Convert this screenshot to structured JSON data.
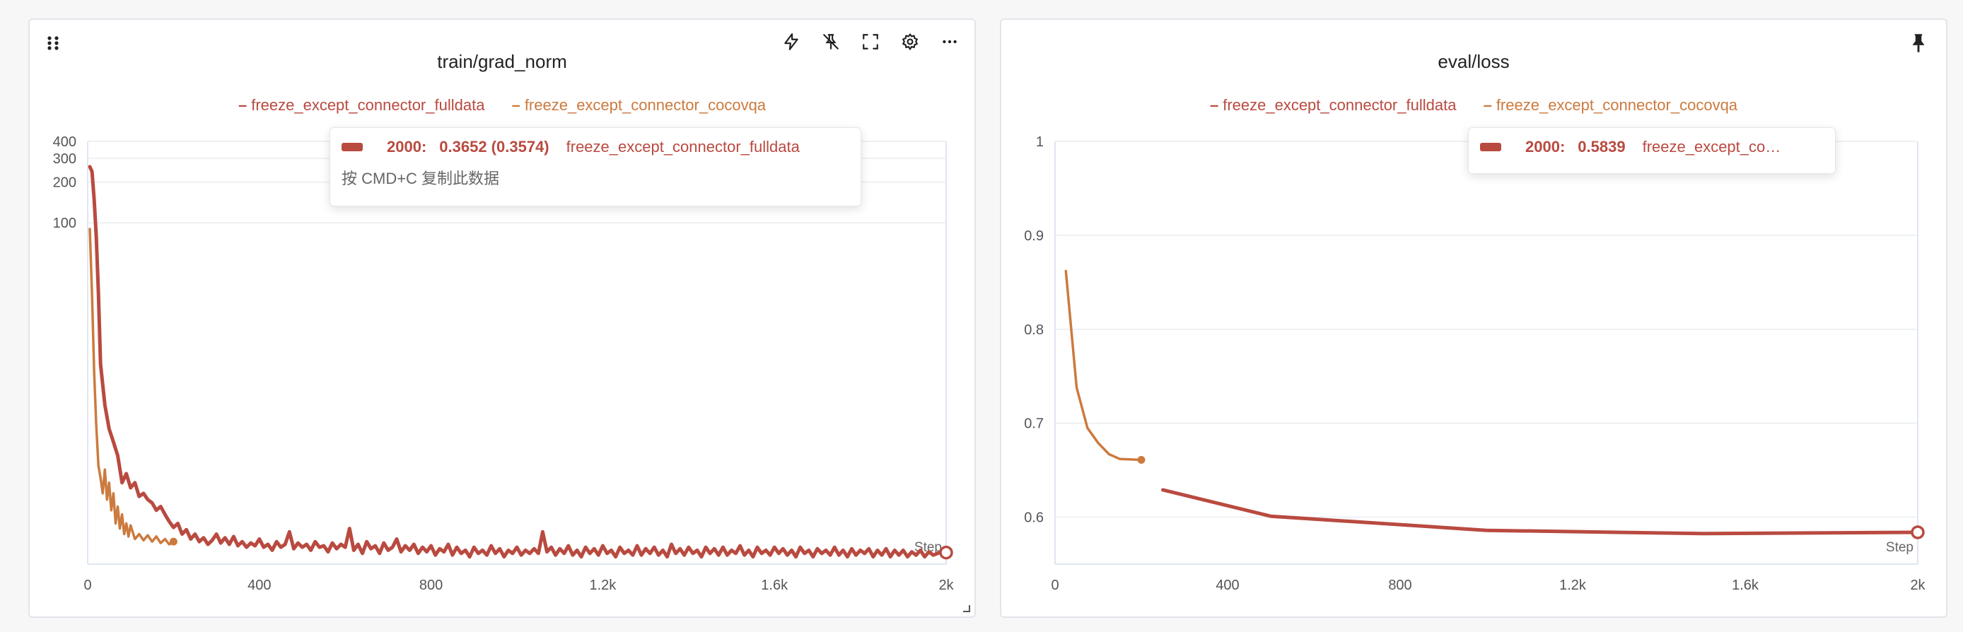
{
  "panels": [
    {
      "title": "train/grad_norm",
      "legend": [
        {
          "name": "freeze_except_connector_fulldata",
          "color": "#b94a40"
        },
        {
          "name": "freeze_except_connector_cocovqa",
          "color": "#cc7a3e"
        }
      ],
      "tooltip": {
        "step": "2000:",
        "value": "0.3652 (0.3574)",
        "series": "freeze_except_connector_fulldata",
        "hint": "按 CMD+C 复制此数据"
      },
      "toolbar": [
        "lightning-icon",
        "pin-off-icon",
        "fullscreen-icon",
        "gear-icon",
        "more-icon"
      ]
    },
    {
      "title": "eval/loss",
      "legend": [
        {
          "name": "freeze_except_connector_fulldata",
          "color": "#b94a40"
        },
        {
          "name": "freeze_except_connector_cocovqa",
          "color": "#cc7a3e"
        }
      ],
      "tooltip": {
        "step": "2000:",
        "value": "0.5839",
        "series": "freeze_except_co…"
      },
      "toolbar": [
        "pin-icon"
      ]
    }
  ],
  "chart_data": [
    {
      "type": "line",
      "title": "train/grad_norm",
      "xlabel": "Step",
      "ylabel": "",
      "yscale": "log",
      "xlim": [
        0,
        2000
      ],
      "ylim": [
        0.3,
        400
      ],
      "xticks": [
        "0",
        "400",
        "800",
        "1.2k",
        "1.6k",
        "2k"
      ],
      "xtick_values": [
        0,
        400,
        800,
        1200,
        1600,
        2000
      ],
      "yticks": [
        "100",
        "200",
        "300",
        "400"
      ],
      "ytick_values": [
        100,
        200,
        300,
        400
      ],
      "grid": true,
      "legend_position": "top",
      "series": [
        {
          "name": "freeze_except_connector_fulldata",
          "color": "#b94a40",
          "points": [
            [
              5,
              260
            ],
            [
              10,
              240
            ],
            [
              15,
              150
            ],
            [
              20,
              80
            ],
            [
              25,
              30
            ],
            [
              30,
              9
            ],
            [
              40,
              4.5
            ],
            [
              50,
              3.0
            ],
            [
              60,
              2.4
            ],
            [
              70,
              1.9
            ],
            [
              80,
              1.2
            ],
            [
              90,
              1.4
            ],
            [
              100,
              1.1
            ],
            [
              110,
              1.2
            ],
            [
              120,
              0.95
            ],
            [
              130,
              1.0
            ],
            [
              140,
              0.9
            ],
            [
              150,
              0.85
            ],
            [
              160,
              0.75
            ],
            [
              170,
              0.8
            ],
            [
              180,
              0.7
            ],
            [
              190,
              0.62
            ],
            [
              200,
              0.56
            ],
            [
              210,
              0.6
            ],
            [
              220,
              0.5
            ],
            [
              230,
              0.54
            ],
            [
              240,
              0.46
            ],
            [
              250,
              0.5
            ],
            [
              260,
              0.44
            ],
            [
              270,
              0.47
            ],
            [
              280,
              0.42
            ],
            [
              290,
              0.45
            ],
            [
              300,
              0.5
            ],
            [
              310,
              0.43
            ],
            [
              320,
              0.47
            ],
            [
              330,
              0.42
            ],
            [
              340,
              0.48
            ],
            [
              350,
              0.41
            ],
            [
              360,
              0.44
            ],
            [
              370,
              0.4
            ],
            [
              380,
              0.43
            ],
            [
              390,
              0.41
            ],
            [
              400,
              0.46
            ],
            [
              410,
              0.4
            ],
            [
              420,
              0.42
            ],
            [
              430,
              0.38
            ],
            [
              440,
              0.44
            ],
            [
              450,
              0.4
            ],
            [
              460,
              0.42
            ],
            [
              470,
              0.52
            ],
            [
              480,
              0.39
            ],
            [
              490,
              0.43
            ],
            [
              500,
              0.4
            ],
            [
              510,
              0.42
            ],
            [
              520,
              0.38
            ],
            [
              530,
              0.44
            ],
            [
              540,
              0.4
            ],
            [
              550,
              0.41
            ],
            [
              560,
              0.37
            ],
            [
              570,
              0.43
            ],
            [
              580,
              0.39
            ],
            [
              590,
              0.42
            ],
            [
              600,
              0.4
            ],
            [
              610,
              0.55
            ],
            [
              620,
              0.38
            ],
            [
              630,
              0.42
            ],
            [
              640,
              0.36
            ],
            [
              650,
              0.44
            ],
            [
              660,
              0.39
            ],
            [
              670,
              0.41
            ],
            [
              680,
              0.36
            ],
            [
              690,
              0.43
            ],
            [
              700,
              0.38
            ],
            [
              710,
              0.4
            ],
            [
              720,
              0.46
            ],
            [
              730,
              0.37
            ],
            [
              740,
              0.41
            ],
            [
              750,
              0.38
            ],
            [
              760,
              0.42
            ],
            [
              770,
              0.36
            ],
            [
              780,
              0.4
            ],
            [
              790,
              0.37
            ],
            [
              800,
              0.41
            ],
            [
              810,
              0.35
            ],
            [
              820,
              0.39
            ],
            [
              830,
              0.37
            ],
            [
              840,
              0.42
            ],
            [
              850,
              0.35
            ],
            [
              860,
              0.4
            ],
            [
              870,
              0.36
            ],
            [
              880,
              0.38
            ],
            [
              890,
              0.34
            ],
            [
              900,
              0.4
            ],
            [
              910,
              0.36
            ],
            [
              920,
              0.38
            ],
            [
              930,
              0.35
            ],
            [
              940,
              0.41
            ],
            [
              950,
              0.36
            ],
            [
              960,
              0.39
            ],
            [
              970,
              0.34
            ],
            [
              980,
              0.38
            ],
            [
              990,
              0.36
            ],
            [
              1000,
              0.4
            ],
            [
              1010,
              0.35
            ],
            [
              1020,
              0.38
            ],
            [
              1030,
              0.36
            ],
            [
              1040,
              0.39
            ],
            [
              1050,
              0.36
            ],
            [
              1060,
              0.52
            ],
            [
              1070,
              0.37
            ],
            [
              1080,
              0.4
            ],
            [
              1090,
              0.35
            ],
            [
              1100,
              0.39
            ],
            [
              1110,
              0.36
            ],
            [
              1120,
              0.41
            ],
            [
              1130,
              0.35
            ],
            [
              1140,
              0.38
            ],
            [
              1150,
              0.34
            ],
            [
              1160,
              0.4
            ],
            [
              1170,
              0.36
            ],
            [
              1180,
              0.39
            ],
            [
              1190,
              0.35
            ],
            [
              1200,
              0.41
            ],
            [
              1210,
              0.36
            ],
            [
              1220,
              0.38
            ],
            [
              1230,
              0.34
            ],
            [
              1240,
              0.4
            ],
            [
              1250,
              0.36
            ],
            [
              1260,
              0.38
            ],
            [
              1270,
              0.35
            ],
            [
              1280,
              0.41
            ],
            [
              1290,
              0.35
            ],
            [
              1300,
              0.39
            ],
            [
              1310,
              0.36
            ],
            [
              1320,
              0.4
            ],
            [
              1330,
              0.35
            ],
            [
              1340,
              0.38
            ],
            [
              1350,
              0.34
            ],
            [
              1360,
              0.42
            ],
            [
              1370,
              0.36
            ],
            [
              1380,
              0.39
            ],
            [
              1390,
              0.35
            ],
            [
              1400,
              0.4
            ],
            [
              1410,
              0.36
            ],
            [
              1420,
              0.38
            ],
            [
              1430,
              0.34
            ],
            [
              1440,
              0.4
            ],
            [
              1450,
              0.36
            ],
            [
              1460,
              0.39
            ],
            [
              1470,
              0.35
            ],
            [
              1480,
              0.4
            ],
            [
              1490,
              0.35
            ],
            [
              1500,
              0.38
            ],
            [
              1510,
              0.36
            ],
            [
              1520,
              0.41
            ],
            [
              1530,
              0.35
            ],
            [
              1540,
              0.38
            ],
            [
              1550,
              0.34
            ],
            [
              1560,
              0.4
            ],
            [
              1570,
              0.36
            ],
            [
              1580,
              0.38
            ],
            [
              1590,
              0.35
            ],
            [
              1600,
              0.4
            ],
            [
              1610,
              0.36
            ],
            [
              1620,
              0.39
            ],
            [
              1630,
              0.35
            ],
            [
              1640,
              0.38
            ],
            [
              1650,
              0.34
            ],
            [
              1660,
              0.4
            ],
            [
              1670,
              0.36
            ],
            [
              1680,
              0.38
            ],
            [
              1690,
              0.34
            ],
            [
              1700,
              0.39
            ],
            [
              1710,
              0.36
            ],
            [
              1720,
              0.38
            ],
            [
              1730,
              0.35
            ],
            [
              1740,
              0.4
            ],
            [
              1750,
              0.35
            ],
            [
              1760,
              0.38
            ],
            [
              1770,
              0.34
            ],
            [
              1780,
              0.39
            ],
            [
              1790,
              0.35
            ],
            [
              1800,
              0.38
            ],
            [
              1810,
              0.36
            ],
            [
              1820,
              0.39
            ],
            [
              1830,
              0.34
            ],
            [
              1840,
              0.38
            ],
            [
              1850,
              0.35
            ],
            [
              1860,
              0.39
            ],
            [
              1870,
              0.34
            ],
            [
              1880,
              0.38
            ],
            [
              1890,
              0.35
            ],
            [
              1900,
              0.38
            ],
            [
              1910,
              0.34
            ],
            [
              1920,
              0.37
            ],
            [
              1930,
              0.35
            ],
            [
              1940,
              0.38
            ],
            [
              1950,
              0.34
            ],
            [
              1960,
              0.37
            ],
            [
              1970,
              0.35
            ],
            [
              1980,
              0.36
            ],
            [
              1990,
              0.37
            ],
            [
              2000,
              0.3652
            ]
          ]
        },
        {
          "name": "freeze_except_connector_cocovqa",
          "color": "#cc7a3e",
          "points": [
            [
              5,
              90
            ],
            [
              10,
              30
            ],
            [
              15,
              8
            ],
            [
              20,
              3.2
            ],
            [
              25,
              1.6
            ],
            [
              30,
              1.3
            ],
            [
              35,
              1.0
            ],
            [
              40,
              1.5
            ],
            [
              45,
              0.9
            ],
            [
              50,
              1.2
            ],
            [
              55,
              0.75
            ],
            [
              60,
              1.0
            ],
            [
              65,
              0.6
            ],
            [
              70,
              0.8
            ],
            [
              75,
              0.55
            ],
            [
              80,
              0.7
            ],
            [
              85,
              0.5
            ],
            [
              90,
              0.6
            ],
            [
              95,
              0.48
            ],
            [
              100,
              0.58
            ],
            [
              110,
              0.46
            ],
            [
              120,
              0.5
            ],
            [
              130,
              0.45
            ],
            [
              140,
              0.49
            ],
            [
              150,
              0.44
            ],
            [
              160,
              0.48
            ],
            [
              170,
              0.43
            ],
            [
              180,
              0.46
            ],
            [
              190,
              0.42
            ],
            [
              200,
              0.44
            ]
          ]
        }
      ]
    },
    {
      "type": "line",
      "title": "eval/loss",
      "xlabel": "Step",
      "ylabel": "",
      "xlim": [
        0,
        2000
      ],
      "ylim": [
        0.55,
        1.0
      ],
      "xticks": [
        "0",
        "400",
        "800",
        "1.2k",
        "1.6k",
        "2k"
      ],
      "xtick_values": [
        0,
        400,
        800,
        1200,
        1600,
        2000
      ],
      "yticks": [
        "0.6",
        "0.7",
        "0.8",
        "0.9",
        "1"
      ],
      "ytick_values": [
        0.6,
        0.7,
        0.8,
        0.9,
        1.0
      ],
      "grid": true,
      "legend_position": "top",
      "series": [
        {
          "name": "freeze_except_connector_fulldata",
          "color": "#b94a40",
          "points": [
            [
              250,
              0.629
            ],
            [
              500,
              0.601
            ],
            [
              1000,
              0.586
            ],
            [
              1500,
              0.5825
            ],
            [
              2000,
              0.5839
            ]
          ]
        },
        {
          "name": "freeze_except_connector_cocovqa",
          "color": "#cc7a3e",
          "points": [
            [
              25,
              0.862
            ],
            [
              50,
              0.738
            ],
            [
              75,
              0.695
            ],
            [
              100,
              0.679
            ],
            [
              125,
              0.667
            ],
            [
              150,
              0.662
            ],
            [
              200,
              0.661
            ]
          ]
        }
      ]
    }
  ]
}
